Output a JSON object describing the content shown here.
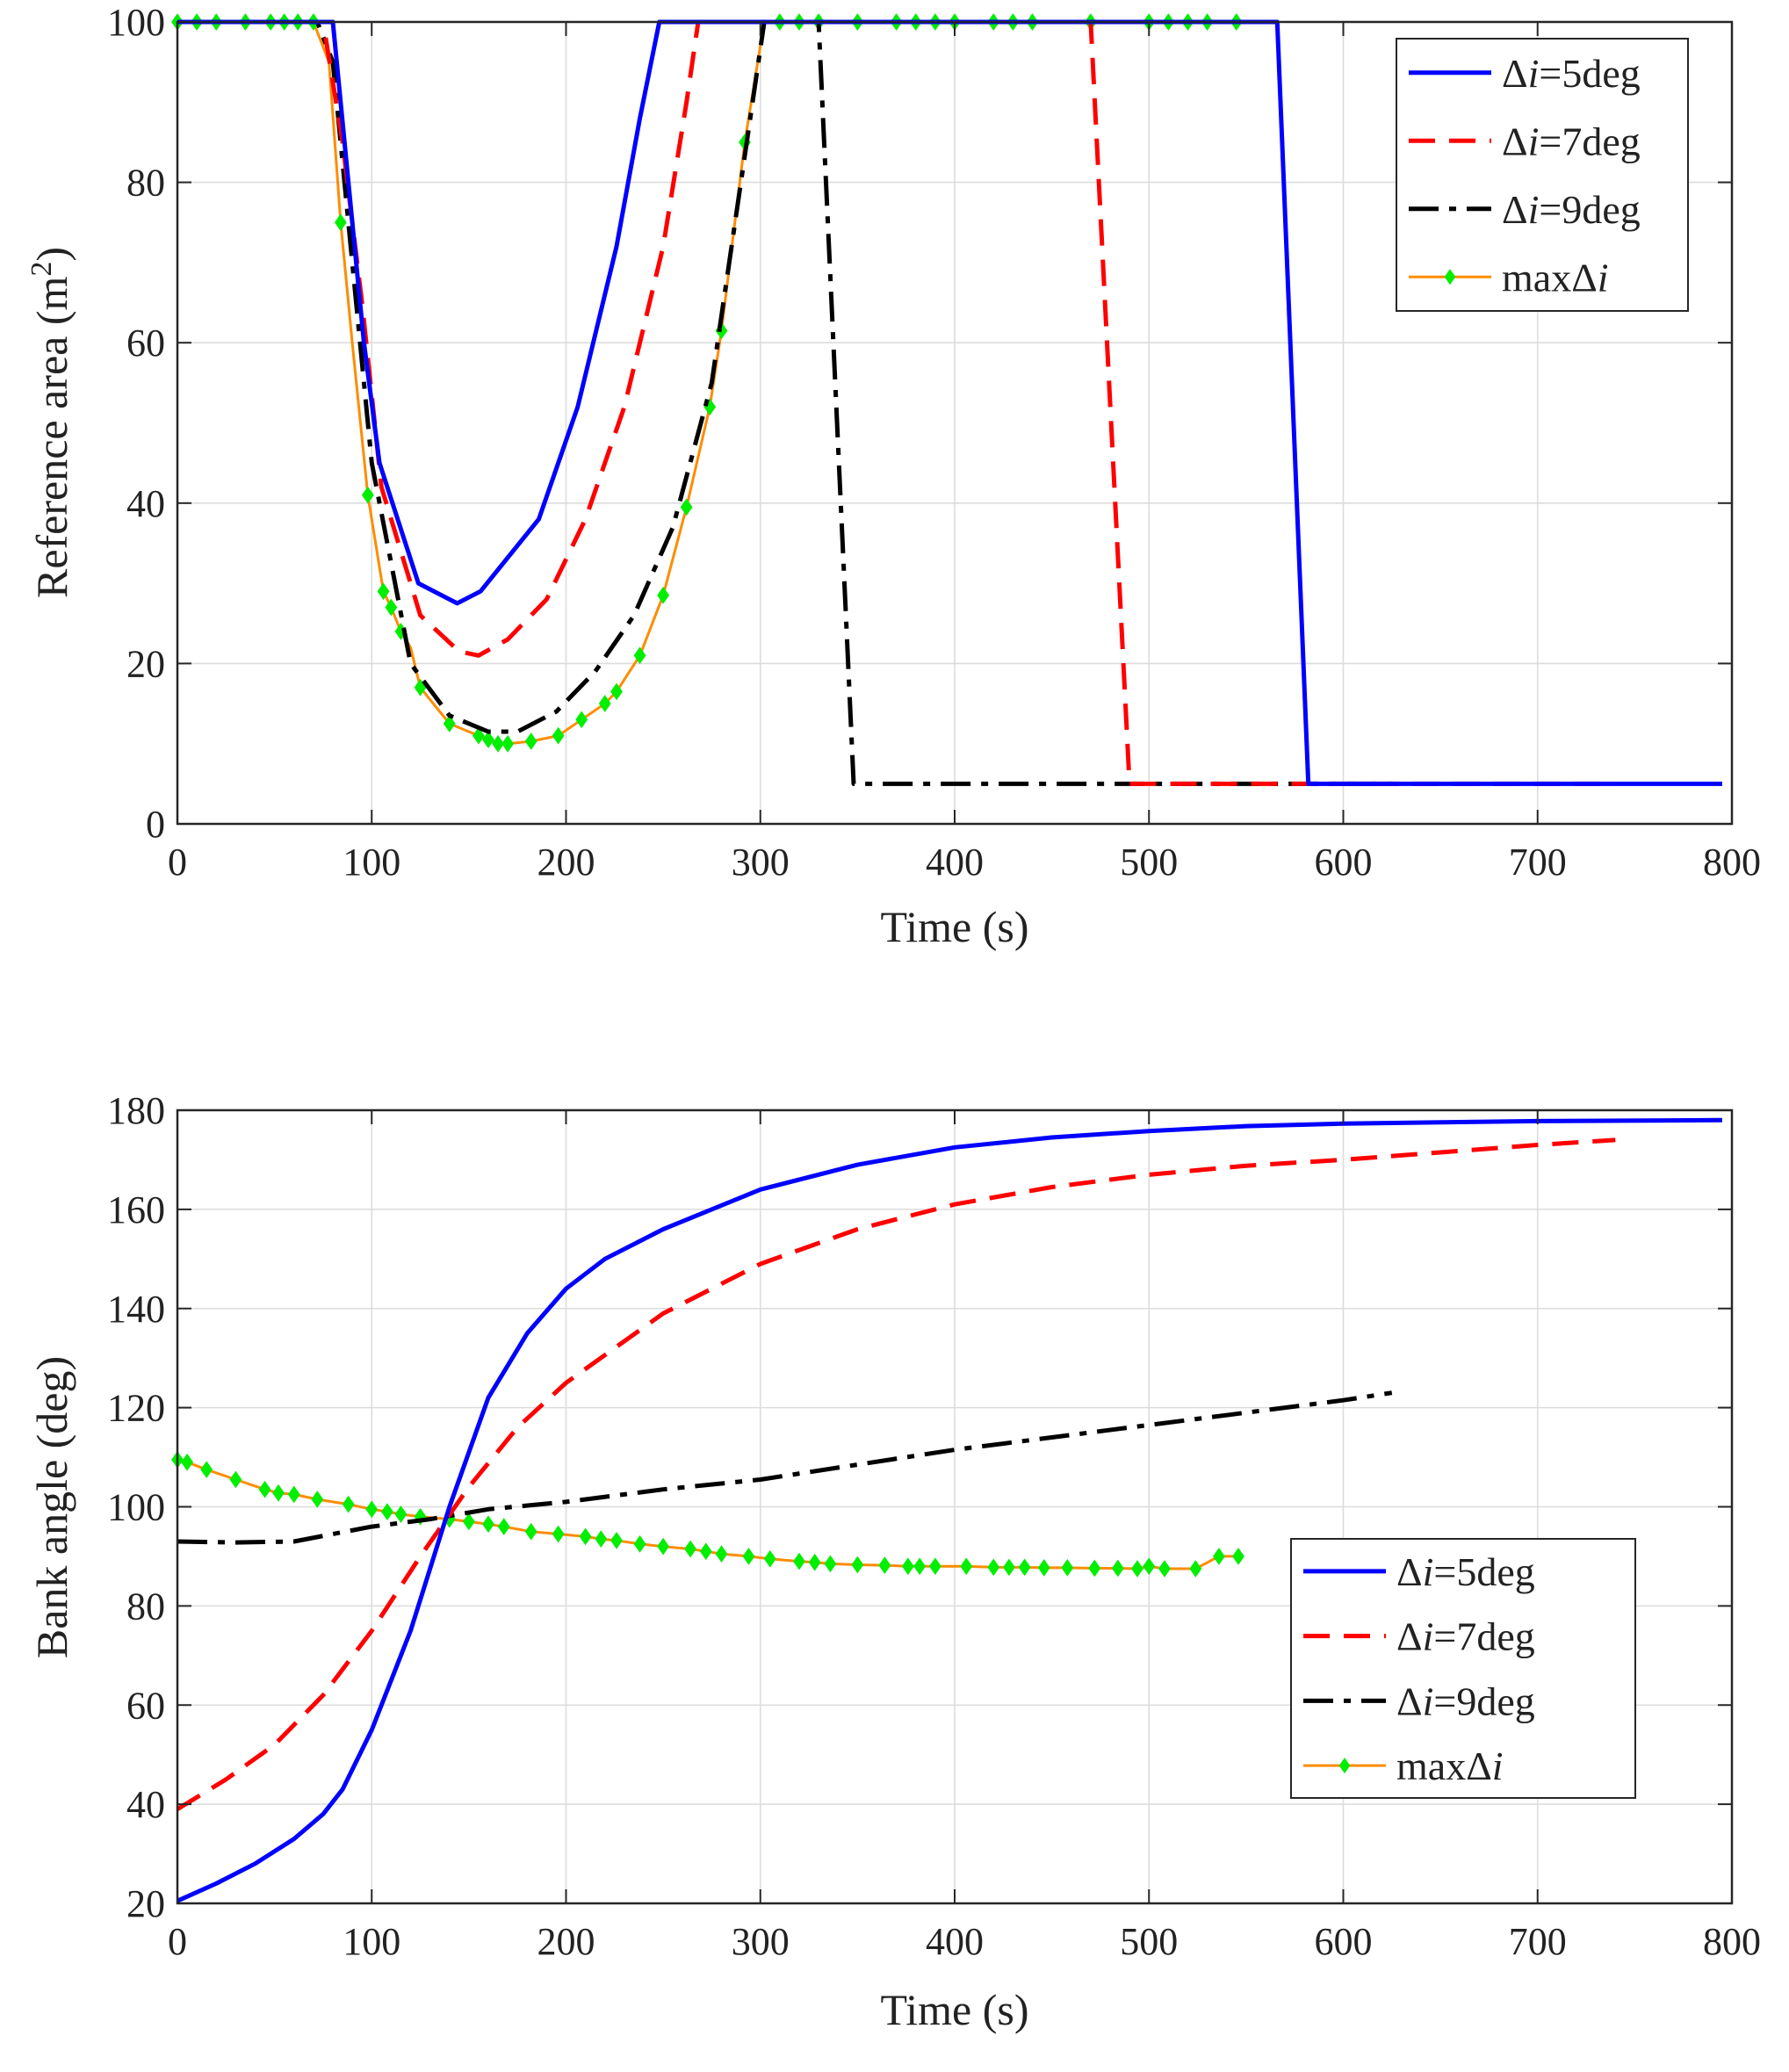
{
  "chart_data": [
    {
      "type": "line",
      "xlabel": "Time (s)",
      "ylabel": "Reference area (m",
      "ylabel_sup": "2",
      "ylabel_close": ")",
      "xlim": [
        0,
        800
      ],
      "ylim": [
        0,
        100
      ],
      "xticks": [
        0,
        100,
        200,
        300,
        400,
        500,
        600,
        700,
        800
      ],
      "yticks": [
        0,
        20,
        40,
        60,
        80,
        100
      ],
      "xtick_labels": [
        "0",
        "100",
        "200",
        "300",
        "400",
        "500",
        "600",
        "700",
        "800"
      ],
      "ytick_labels": [
        "0",
        "20",
        "40",
        "60",
        "80",
        "100"
      ],
      "grid": true,
      "legend_position": "top-right",
      "series": [
        {
          "name": "Δi=5deg",
          "legend_prefix": "Δ",
          "legend_var": "i",
          "legend_suffix": "=5deg",
          "color": "#0000ff",
          "style": "solid",
          "x": [
            0,
            80,
            88,
            96,
            104,
            124,
            144,
            156,
            166,
            186,
            206,
            226,
            238,
            248,
            566,
            582,
            795
          ],
          "y": [
            100,
            100,
            80,
            60,
            45,
            30,
            27.5,
            29,
            32,
            38,
            52,
            72,
            88,
            100,
            100,
            5,
            5
          ]
        },
        {
          "name": "Δi=7deg",
          "legend_prefix": "Δ",
          "legend_var": "i",
          "legend_suffix": "=7deg",
          "color": "#ff0000",
          "style": "dashed",
          "x": [
            0,
            75,
            85,
            95,
            105,
            125,
            145,
            155,
            170,
            190,
            210,
            230,
            250,
            262,
            268,
            470,
            490,
            740
          ],
          "y": [
            100,
            100,
            85,
            65,
            42,
            26,
            21.5,
            21,
            23,
            28,
            38,
            52,
            72,
            90,
            100,
            100,
            5,
            5
          ]
        },
        {
          "name": "Δi=9deg",
          "legend_prefix": "Δ",
          "legend_var": "i",
          "legend_suffix": "=9deg",
          "color": "#000000",
          "style": "dashdot",
          "x": [
            0,
            72,
            80,
            90,
            100,
            120,
            140,
            160,
            175,
            195,
            215,
            235,
            255,
            275,
            290,
            302,
            330,
            348,
            625
          ],
          "y": [
            100,
            100,
            95,
            70,
            45,
            20,
            13.5,
            11.5,
            11.5,
            14,
            19,
            26,
            37,
            55,
            80,
            100,
            100,
            5,
            5
          ]
        },
        {
          "name": "maxΔi",
          "legend_prefix": "maxΔ",
          "legend_var": "i",
          "legend_suffix": "",
          "color": "#ff8c00",
          "marker_color": "#00ee00",
          "style": "solid-marker",
          "x": [
            0,
            10,
            20,
            35,
            48,
            55,
            62,
            70,
            78,
            84,
            90,
            98,
            102,
            106,
            110,
            115,
            120,
            125,
            140,
            155,
            160,
            165,
            170,
            182,
            196,
            208,
            220,
            226,
            238,
            250,
            262,
            274,
            280,
            292,
            302,
            310,
            320,
            330,
            350,
            370,
            380,
            390,
            400,
            420,
            430,
            440,
            470,
            500,
            510,
            520,
            530,
            545
          ],
          "y": [
            100,
            100,
            100,
            100,
            100,
            100,
            100,
            100,
            95,
            75,
            60,
            41,
            35,
            29,
            27,
            24,
            22,
            17,
            12.5,
            11,
            10.5,
            10,
            10,
            10.3,
            11,
            13,
            15,
            16.5,
            21,
            28.5,
            39.5,
            52,
            61.5,
            85,
            100,
            100,
            100,
            100,
            100,
            100,
            100,
            100,
            100,
            100,
            100,
            100,
            100,
            100,
            100,
            100,
            100,
            100
          ],
          "markers": [
            0,
            10,
            20,
            35,
            48,
            55,
            62,
            70,
            84,
            98,
            106,
            110,
            115,
            125,
            140,
            155,
            160,
            165,
            170,
            182,
            196,
            208,
            220,
            226,
            238,
            250,
            262,
            274,
            280,
            292,
            310,
            320,
            330,
            350,
            370,
            380,
            390,
            400,
            420,
            430,
            440,
            470,
            500,
            510,
            520,
            530,
            545
          ]
        }
      ]
    },
    {
      "type": "line",
      "xlabel": "Time (s)",
      "ylabel": "Bank angle (deg)",
      "xlim": [
        0,
        800
      ],
      "ylim": [
        20,
        180
      ],
      "xticks": [
        0,
        100,
        200,
        300,
        400,
        500,
        600,
        700,
        800
      ],
      "yticks": [
        20,
        40,
        60,
        80,
        100,
        120,
        140,
        160,
        180
      ],
      "xtick_labels": [
        "0",
        "100",
        "200",
        "300",
        "400",
        "500",
        "600",
        "700",
        "800"
      ],
      "ytick_labels": [
        "20",
        "40",
        "60",
        "80",
        "100",
        "120",
        "140",
        "160",
        "180"
      ],
      "grid": true,
      "legend_position": "bottom-right",
      "series": [
        {
          "name": "Δi=5deg",
          "legend_prefix": "Δ",
          "legend_var": "i",
          "legend_suffix": "=5deg",
          "color": "#0000ff",
          "style": "solid",
          "x": [
            0,
            20,
            40,
            60,
            75,
            85,
            100,
            120,
            140,
            160,
            180,
            200,
            220,
            250,
            300,
            350,
            400,
            450,
            500,
            550,
            600,
            700,
            795
          ],
          "y": [
            20.5,
            24,
            28,
            33,
            38,
            43,
            55,
            75,
            100,
            122,
            135,
            144,
            150,
            156,
            164,
            169,
            172.5,
            174.5,
            175.8,
            176.8,
            177.3,
            177.8,
            178
          ]
        },
        {
          "name": "Δi=7deg",
          "legend_prefix": "Δ",
          "legend_var": "i",
          "legend_suffix": "=7deg",
          "color": "#ff0000",
          "style": "dashed",
          "x": [
            0,
            25,
            50,
            75,
            100,
            125,
            150,
            175,
            200,
            250,
            300,
            350,
            400,
            450,
            500,
            550,
            600,
            650,
            700,
            740
          ],
          "y": [
            39,
            45,
            52,
            62,
            75,
            90,
            104,
            116,
            125,
            139,
            149,
            156,
            161,
            164.5,
            167,
            168.8,
            170,
            171.5,
            173,
            174
          ]
        },
        {
          "name": "Δi=9deg",
          "legend_prefix": "Δ",
          "legend_var": "i",
          "legend_suffix": "=9deg",
          "color": "#000000",
          "style": "dashdot",
          "x": [
            0,
            30,
            60,
            80,
            100,
            130,
            160,
            200,
            250,
            300,
            350,
            400,
            450,
            500,
            550,
            600,
            625
          ],
          "y": [
            93,
            92.8,
            93,
            94.5,
            96,
            97.5,
            99.5,
            101,
            103.5,
            105.5,
            108.5,
            111.5,
            114,
            116.5,
            119,
            121.5,
            123
          ]
        },
        {
          "name": "maxΔi",
          "legend_prefix": "maxΔ",
          "legend_var": "i",
          "legend_suffix": "",
          "color": "#ff8c00",
          "marker_color": "#00ee00",
          "style": "solid-marker",
          "x": [
            0,
            5,
            15,
            30,
            45,
            52,
            60,
            72,
            88,
            100,
            108,
            115,
            125,
            140,
            150,
            160,
            168,
            182,
            196,
            210,
            218,
            226,
            238,
            250,
            264,
            272,
            280,
            294,
            305,
            320,
            328,
            336,
            350,
            364,
            376,
            382,
            390,
            406,
            420,
            428,
            436,
            446,
            458,
            472,
            484,
            494,
            500,
            508,
            524,
            536,
            546
          ],
          "y": [
            109.5,
            109,
            107.5,
            105.5,
            103.5,
            102.8,
            102.5,
            101.5,
            100.5,
            99.5,
            99,
            98.5,
            98,
            97.5,
            97,
            96.5,
            96,
            95,
            94.5,
            94,
            93.5,
            93.2,
            92.5,
            92,
            91.5,
            91,
            90.5,
            90,
            89.5,
            89,
            88.8,
            88.5,
            88.3,
            88.2,
            88,
            88,
            88,
            88,
            87.8,
            87.8,
            87.8,
            87.7,
            87.7,
            87.6,
            87.6,
            87.5,
            88,
            87.5,
            87.5,
            90,
            90
          ],
          "markers": [
            0,
            5,
            15,
            30,
            45,
            52,
            60,
            72,
            88,
            100,
            108,
            115,
            125,
            140,
            150,
            160,
            168,
            182,
            196,
            210,
            218,
            226,
            238,
            250,
            264,
            272,
            280,
            294,
            305,
            320,
            328,
            336,
            350,
            364,
            376,
            382,
            390,
            406,
            420,
            428,
            436,
            446,
            458,
            472,
            484,
            494,
            500,
            508,
            524,
            536,
            546
          ]
        }
      ]
    }
  ]
}
